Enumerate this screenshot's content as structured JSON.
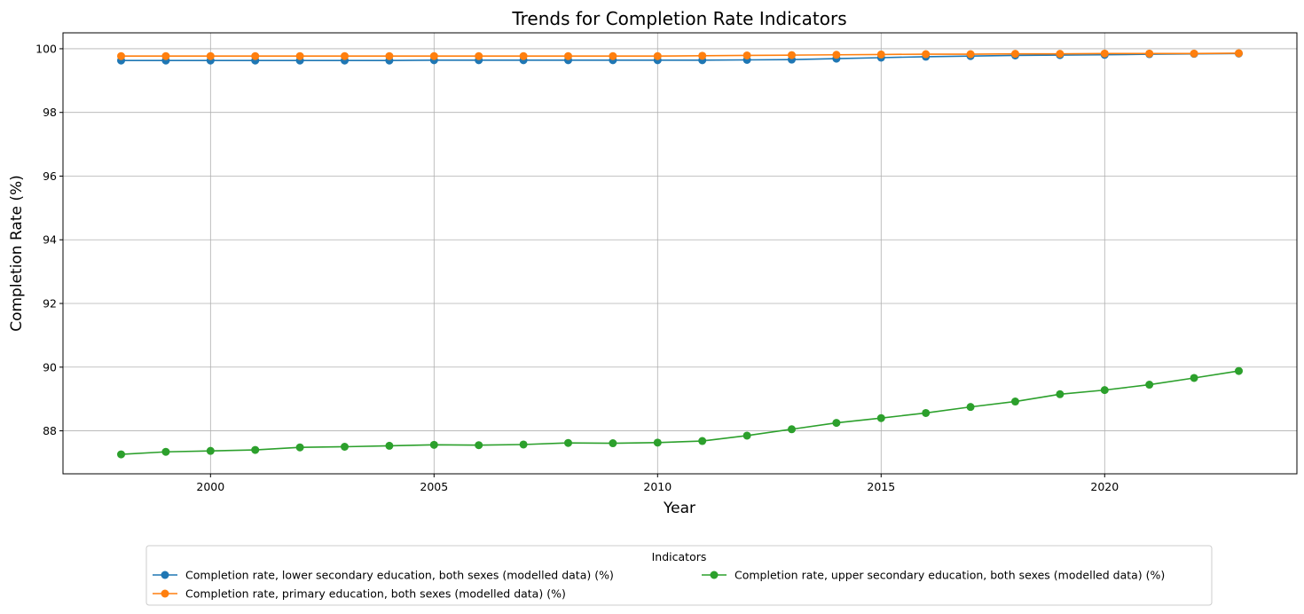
{
  "chart_data": {
    "type": "line",
    "title": "Trends for Completion Rate Indicators",
    "xlabel": "Year",
    "ylabel": "Completion Rate (%)",
    "xlim": [
      1996.7,
      2024.3
    ],
    "ylim": [
      86.65,
      100.5
    ],
    "xticks": [
      2000,
      2005,
      2010,
      2015,
      2020
    ],
    "yticks": [
      88,
      90,
      92,
      94,
      96,
      98,
      100
    ],
    "grid": true,
    "legend": {
      "title": "Indicators",
      "placement": "bottom-center",
      "columns": 2
    },
    "x": [
      1998,
      1999,
      2000,
      2001,
      2002,
      2003,
      2004,
      2005,
      2006,
      2007,
      2008,
      2009,
      2010,
      2011,
      2012,
      2013,
      2014,
      2015,
      2016,
      2017,
      2018,
      2019,
      2020,
      2021,
      2022,
      2023
    ],
    "series": [
      {
        "name": "Completion rate, lower secondary education, both sexes (modelled data) (%)",
        "color": "#1f77b4",
        "values": [
          99.63,
          99.63,
          99.63,
          99.63,
          99.63,
          99.63,
          99.63,
          99.64,
          99.64,
          99.64,
          99.64,
          99.64,
          99.64,
          99.64,
          99.65,
          99.66,
          99.69,
          99.72,
          99.75,
          99.77,
          99.79,
          99.8,
          99.81,
          99.83,
          99.84,
          99.85
        ]
      },
      {
        "name": "Completion rate, primary education, both sexes (modelled data) (%)",
        "color": "#ff7f0e",
        "values": [
          99.77,
          99.77,
          99.77,
          99.77,
          99.77,
          99.77,
          99.77,
          99.77,
          99.77,
          99.77,
          99.77,
          99.77,
          99.77,
          99.78,
          99.79,
          99.8,
          99.81,
          99.82,
          99.83,
          99.83,
          99.84,
          99.84,
          99.85,
          99.85,
          99.85,
          99.86
        ]
      },
      {
        "name": "Completion rate, upper secondary education, both sexes (modelled data) (%)",
        "color": "#2ca02c",
        "values": [
          87.26,
          87.34,
          87.37,
          87.4,
          87.48,
          87.5,
          87.53,
          87.56,
          87.55,
          87.57,
          87.62,
          87.61,
          87.63,
          87.68,
          87.85,
          88.05,
          88.25,
          88.4,
          88.56,
          88.75,
          88.92,
          89.15,
          89.28,
          89.45,
          89.66,
          89.88
        ]
      }
    ]
  }
}
